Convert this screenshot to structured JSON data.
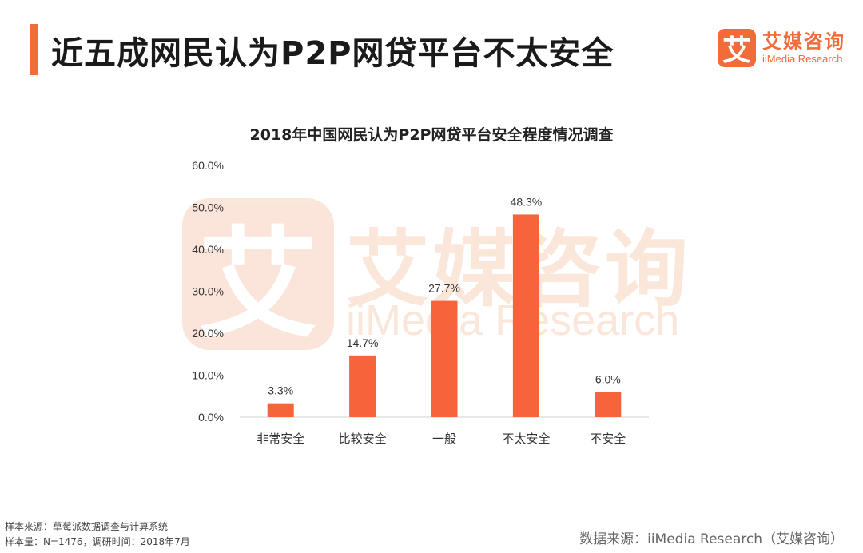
{
  "header": {
    "title": "近五成网民认为P2P网贷平台不太安全",
    "accent_color": "#f26b3a"
  },
  "logo": {
    "mark": "艾",
    "name_cn": "艾媒咨询",
    "name_en": "iiMedia Research"
  },
  "watermark": {
    "mark": "艾",
    "name_cn": "艾媒咨询",
    "name_en": "iiMedia Research"
  },
  "chart_data": {
    "type": "bar",
    "title": "2018年中国网民认为P2P网贷平台安全程度情况调查",
    "categories": [
      "非常安全",
      "比较安全",
      "一般",
      "不太安全",
      "不安全"
    ],
    "values": [
      3.3,
      14.7,
      27.7,
      48.3,
      6.0
    ],
    "value_labels": [
      "3.3%",
      "14.7%",
      "27.7%",
      "48.3%",
      "6.0%"
    ],
    "ylim": [
      0,
      60
    ],
    "yticks": [
      0,
      10,
      20,
      30,
      40,
      50,
      60
    ],
    "ytick_labels": [
      "0.0%",
      "10.0%",
      "20.0%",
      "30.0%",
      "40.0%",
      "50.0%",
      "60.0%"
    ],
    "bar_color": "#f5643a",
    "grid": false,
    "xlabel": "",
    "ylabel": ""
  },
  "footer": {
    "sample_source": "样本来源：草莓派数据调查与计算系统",
    "sample_size": "样本量：N=1476，调研时间：2018年7月",
    "data_source": "数据来源：iiMedia Research（艾媒咨询）"
  }
}
